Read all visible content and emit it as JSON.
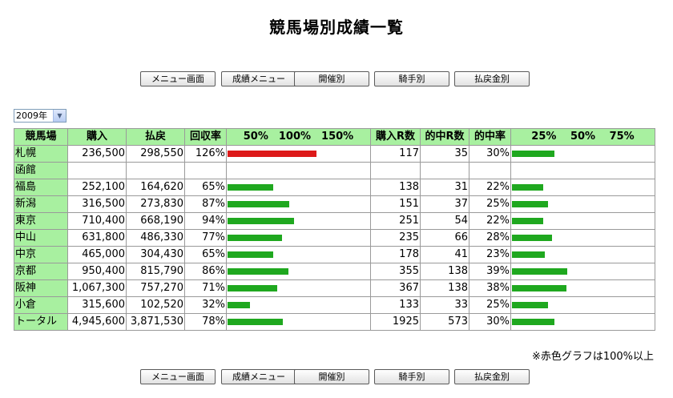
{
  "page": {
    "title": "競馬場別成績一覧",
    "note": "※赤色グラフは100%以上"
  },
  "nav": {
    "buttons": [
      "メニュー画面",
      "成績メニュー",
      "開催別",
      "騎手別",
      "払戻金別"
    ]
  },
  "year_select": {
    "value": "2009年"
  },
  "table": {
    "headers": {
      "venue": "競馬場",
      "purchase": "購入",
      "payout": "払戻",
      "return_rate": "回収率",
      "return_scale": "50%　100%　150%",
      "races": "購入R数",
      "hits": "的中R数",
      "hit_rate": "的中率",
      "hit_scale": "25%　 50%　 75%"
    },
    "rows": [
      {
        "venue": "札幌",
        "purchase": "236,500",
        "payout": "298,550",
        "return_rate": "126%",
        "races": "117",
        "hits": "35",
        "hit_rate": "30%",
        "return_pct": 126,
        "hit_pct": 30
      },
      {
        "venue": "函館",
        "purchase": "",
        "payout": "",
        "return_rate": "",
        "races": "",
        "hits": "",
        "hit_rate": "",
        "return_pct": 0,
        "hit_pct": 0
      },
      {
        "venue": "福島",
        "purchase": "252,100",
        "payout": "164,620",
        "return_rate": "65%",
        "races": "138",
        "hits": "31",
        "hit_rate": "22%",
        "return_pct": 65,
        "hit_pct": 22
      },
      {
        "venue": "新潟",
        "purchase": "316,500",
        "payout": "273,830",
        "return_rate": "87%",
        "races": "151",
        "hits": "37",
        "hit_rate": "25%",
        "return_pct": 87,
        "hit_pct": 25
      },
      {
        "venue": "東京",
        "purchase": "710,400",
        "payout": "668,190",
        "return_rate": "94%",
        "races": "251",
        "hits": "54",
        "hit_rate": "22%",
        "return_pct": 94,
        "hit_pct": 22
      },
      {
        "venue": "中山",
        "purchase": "631,800",
        "payout": "486,330",
        "return_rate": "77%",
        "races": "235",
        "hits": "66",
        "hit_rate": "28%",
        "return_pct": 77,
        "hit_pct": 28
      },
      {
        "venue": "中京",
        "purchase": "465,000",
        "payout": "304,430",
        "return_rate": "65%",
        "races": "178",
        "hits": "41",
        "hit_rate": "23%",
        "return_pct": 65,
        "hit_pct": 23
      },
      {
        "venue": "京都",
        "purchase": "950,400",
        "payout": "815,790",
        "return_rate": "86%",
        "races": "355",
        "hits": "138",
        "hit_rate": "39%",
        "return_pct": 86,
        "hit_pct": 39
      },
      {
        "venue": "阪神",
        "purchase": "1,067,300",
        "payout": "757,270",
        "return_rate": "71%",
        "races": "367",
        "hits": "138",
        "hit_rate": "38%",
        "return_pct": 71,
        "hit_pct": 38
      },
      {
        "venue": "小倉",
        "purchase": "315,600",
        "payout": "102,520",
        "return_rate": "32%",
        "races": "133",
        "hits": "33",
        "hit_rate": "25%",
        "return_pct": 32,
        "hit_pct": 25
      },
      {
        "venue": "トータル",
        "purchase": "4,945,600",
        "payout": "3,871,530",
        "return_rate": "78%",
        "races": "1925",
        "hits": "573",
        "hit_rate": "30%",
        "return_pct": 78,
        "hit_pct": 30
      }
    ]
  },
  "colors": {
    "header_bg": "#a8f0a0",
    "bar_normal": "#1fa81f",
    "bar_over_100": "#dd1a1a"
  }
}
